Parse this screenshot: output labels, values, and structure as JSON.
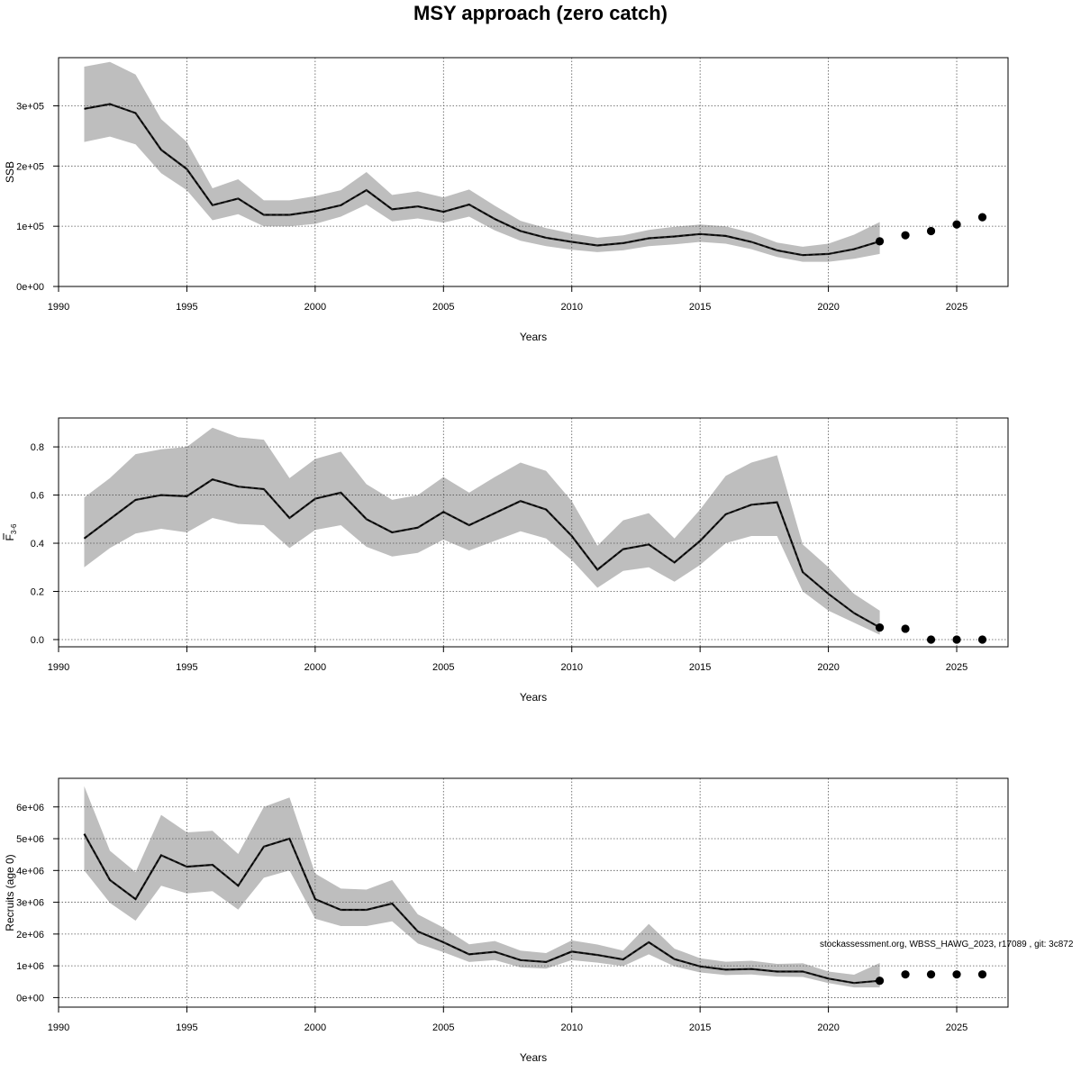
{
  "title": "MSY approach (zero catch)",
  "footnote": "stockassessment.org, WBSS_HAWG_2023, r17089 , git: 3c872",
  "colors": {
    "band": "#bebebe",
    "line": "#000000",
    "grid": "#555555"
  },
  "chart_data": [
    {
      "type": "line",
      "ylabel": "SSB",
      "xlabel": "Years",
      "xlim": [
        1990,
        2027
      ],
      "ylim": [
        0,
        380000
      ],
      "x_ticks": [
        1990,
        1995,
        2000,
        2005,
        2010,
        2015,
        2020,
        2025
      ],
      "x_tick_labels": [
        "1990",
        "1995",
        "2000",
        "2005",
        "2010",
        "2015",
        "2020",
        "2025"
      ],
      "y_ticks": [
        0,
        100000,
        200000,
        300000
      ],
      "y_tick_labels": [
        "0e+00",
        "1e+05",
        "2e+05",
        "3e+05"
      ],
      "grid": true,
      "x": [
        1991,
        1992,
        1993,
        1994,
        1995,
        1996,
        1997,
        1998,
        1999,
        2000,
        2001,
        2002,
        2003,
        2004,
        2005,
        2006,
        2007,
        2008,
        2009,
        2010,
        2011,
        2012,
        2013,
        2014,
        2015,
        2016,
        2017,
        2018,
        2019,
        2020,
        2021,
        2022
      ],
      "estimate": [
        295000,
        303000,
        288000,
        227000,
        195000,
        135000,
        146000,
        119000,
        119000,
        125000,
        135000,
        160000,
        128000,
        133000,
        124000,
        136000,
        112000,
        92000,
        81000,
        74000,
        68000,
        72000,
        80000,
        83000,
        87000,
        84000,
        74000,
        60000,
        52000,
        54000,
        62000,
        75000
      ],
      "lower": [
        240000,
        249000,
        236000,
        188000,
        160000,
        110000,
        120000,
        100000,
        100000,
        104000,
        116000,
        136000,
        108000,
        113000,
        106000,
        116000,
        93000,
        76000,
        67000,
        61000,
        57000,
        60000,
        67000,
        70000,
        74000,
        71000,
        62000,
        49000,
        41000,
        41000,
        46000,
        54000
      ],
      "upper": [
        365000,
        373000,
        352000,
        278000,
        240000,
        163000,
        178000,
        143000,
        143000,
        150000,
        160000,
        190000,
        152000,
        158000,
        148000,
        161000,
        134000,
        109000,
        97000,
        88000,
        81000,
        85000,
        94000,
        99000,
        103000,
        100000,
        89000,
        73000,
        66000,
        71000,
        86000,
        107000
      ],
      "forecast_x": [
        2022,
        2023,
        2024,
        2025,
        2026
      ],
      "forecast": [
        75000,
        85000,
        92000,
        103000,
        115000
      ]
    },
    {
      "type": "line",
      "ylabel": "F",
      "ylabel_sub": "3-6",
      "xlabel": "Years",
      "xlim": [
        1990,
        2027
      ],
      "ylim": [
        -0.03,
        0.92
      ],
      "x_ticks": [
        1990,
        1995,
        2000,
        2005,
        2010,
        2015,
        2020,
        2025
      ],
      "x_tick_labels": [
        "1990",
        "1995",
        "2000",
        "2005",
        "2010",
        "2015",
        "2020",
        "2025"
      ],
      "y_ticks": [
        0,
        0.2,
        0.4,
        0.6,
        0.8
      ],
      "y_tick_labels": [
        "0.0",
        "0.2",
        "0.4",
        "0.6",
        "0.8"
      ],
      "grid": true,
      "x": [
        1991,
        1992,
        1993,
        1994,
        1995,
        1996,
        1997,
        1998,
        1999,
        2000,
        2001,
        2002,
        2003,
        2004,
        2005,
        2006,
        2007,
        2008,
        2009,
        2010,
        2011,
        2012,
        2013,
        2014,
        2015,
        2016,
        2017,
        2018,
        2019,
        2020,
        2021,
        2022
      ],
      "estimate": [
        0.42,
        0.5,
        0.58,
        0.6,
        0.595,
        0.665,
        0.635,
        0.625,
        0.505,
        0.585,
        0.61,
        0.5,
        0.445,
        0.465,
        0.53,
        0.475,
        0.525,
        0.575,
        0.54,
        0.43,
        0.29,
        0.375,
        0.395,
        0.32,
        0.41,
        0.52,
        0.56,
        0.57,
        0.28,
        0.19,
        0.11,
        0.05
      ],
      "lower": [
        0.3,
        0.38,
        0.44,
        0.46,
        0.445,
        0.505,
        0.48,
        0.475,
        0.38,
        0.455,
        0.475,
        0.385,
        0.345,
        0.36,
        0.415,
        0.37,
        0.41,
        0.45,
        0.42,
        0.33,
        0.215,
        0.285,
        0.3,
        0.24,
        0.31,
        0.4,
        0.43,
        0.43,
        0.2,
        0.12,
        0.07,
        0.02
      ],
      "upper": [
        0.59,
        0.67,
        0.77,
        0.79,
        0.8,
        0.88,
        0.84,
        0.83,
        0.67,
        0.75,
        0.78,
        0.645,
        0.58,
        0.6,
        0.675,
        0.61,
        0.675,
        0.735,
        0.7,
        0.575,
        0.39,
        0.495,
        0.525,
        0.42,
        0.54,
        0.68,
        0.735,
        0.765,
        0.395,
        0.3,
        0.19,
        0.12
      ],
      "forecast_x": [
        2022,
        2023,
        2024,
        2025,
        2026
      ],
      "forecast": [
        0.05,
        0.045,
        0.0,
        0.0,
        0.0
      ]
    },
    {
      "type": "line",
      "ylabel": "Recruits (age 0)",
      "xlabel": "Years",
      "xlim": [
        1990,
        2027
      ],
      "ylim": [
        -300000,
        6900000
      ],
      "x_ticks": [
        1990,
        1995,
        2000,
        2005,
        2010,
        2015,
        2020,
        2025
      ],
      "x_tick_labels": [
        "1990",
        "1995",
        "2000",
        "2005",
        "2010",
        "2015",
        "2020",
        "2025"
      ],
      "y_ticks": [
        0,
        1000000,
        2000000,
        3000000,
        4000000,
        5000000,
        6000000
      ],
      "y_tick_labels": [
        "0e+00",
        "1e+06",
        "2e+06",
        "3e+06",
        "4e+06",
        "5e+06",
        "6e+06"
      ],
      "grid": true,
      "x": [
        1991,
        1992,
        1993,
        1994,
        1995,
        1996,
        1997,
        1998,
        1999,
        2000,
        2001,
        2002,
        2003,
        2004,
        2005,
        2006,
        2007,
        2008,
        2009,
        2010,
        2011,
        2012,
        2013,
        2014,
        2015,
        2016,
        2017,
        2018,
        2019,
        2020,
        2021,
        2022
      ],
      "estimate": [
        5150000,
        3700000,
        3100000,
        4480000,
        4120000,
        4180000,
        3520000,
        4750000,
        5000000,
        3100000,
        2760000,
        2760000,
        2960000,
        2080000,
        1740000,
        1360000,
        1440000,
        1180000,
        1120000,
        1450000,
        1340000,
        1200000,
        1740000,
        1210000,
        980000,
        880000,
        900000,
        820000,
        820000,
        600000,
        460000,
        530000
      ],
      "lower": [
        4000000,
        2980000,
        2420000,
        3520000,
        3280000,
        3350000,
        2770000,
        3770000,
        4000000,
        2480000,
        2250000,
        2250000,
        2400000,
        1700000,
        1430000,
        1120000,
        1180000,
        950000,
        910000,
        1180000,
        1100000,
        990000,
        1360000,
        980000,
        790000,
        710000,
        730000,
        660000,
        650000,
        460000,
        320000,
        320000
      ],
      "upper": [
        6650000,
        4620000,
        3950000,
        5750000,
        5200000,
        5250000,
        4520000,
        6000000,
        6300000,
        3900000,
        3430000,
        3400000,
        3700000,
        2620000,
        2200000,
        1680000,
        1780000,
        1480000,
        1400000,
        1800000,
        1670000,
        1480000,
        2320000,
        1540000,
        1240000,
        1130000,
        1160000,
        1060000,
        1080000,
        820000,
        720000,
        1090000
      ],
      "forecast_x": [
        2022,
        2023,
        2024,
        2025,
        2026
      ],
      "forecast": [
        530000,
        730000,
        730000,
        730000,
        730000
      ]
    }
  ]
}
